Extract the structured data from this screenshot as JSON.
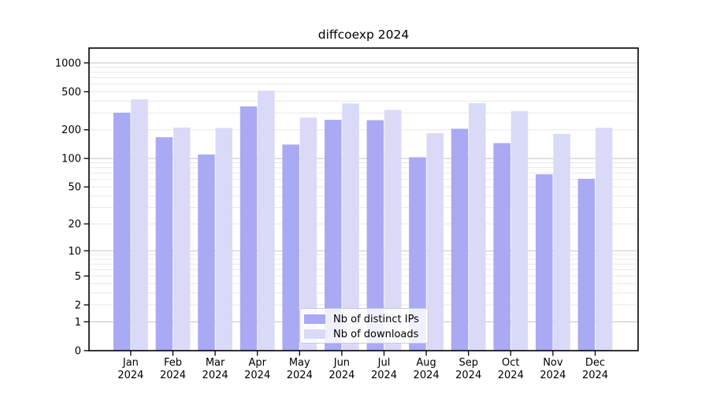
{
  "title": "diffcoexp 2024",
  "chart_data": {
    "type": "bar",
    "title": "diffcoexp 2024",
    "categories": [
      "Jan",
      "Feb",
      "Mar",
      "Apr",
      "May",
      "Jun",
      "Jul",
      "Aug",
      "Sep",
      "Oct",
      "Nov",
      "Dec"
    ],
    "year_label": "2024",
    "series": [
      {
        "name": "Nb of distinct IPs",
        "color": "#a9a9f4",
        "values": [
          302,
          167,
          110,
          351,
          140,
          254,
          252,
          103,
          205,
          145,
          68,
          61
        ]
      },
      {
        "name": "Nb of downloads",
        "color": "#dadaf8",
        "values": [
          417,
          211,
          209,
          514,
          268,
          377,
          322,
          184,
          380,
          313,
          181,
          210
        ]
      }
    ],
    "xlabel": "",
    "ylabel": "",
    "y_scale": "log1p",
    "y_ticks": [
      0,
      1,
      2,
      5,
      10,
      20,
      50,
      100,
      200,
      500,
      1000
    ],
    "y_major_gridlines": [
      1,
      10,
      100,
      1000
    ],
    "y_minor_gridlines": [
      2,
      3,
      4,
      5,
      6,
      7,
      8,
      9,
      20,
      30,
      40,
      50,
      60,
      70,
      80,
      90,
      200,
      300,
      400,
      500,
      600,
      700,
      800,
      900
    ],
    "ylim": [
      0,
      1430
    ],
    "grid": "on",
    "legend_position": "lower center"
  },
  "colors": {
    "bar_distinct_ips": "#a9a9f4",
    "bar_downloads": "#dadaf8",
    "major_gridline": "#c3c3c3",
    "minor_gridline": "#e8e8e8",
    "axis_frame": "#000000",
    "text": "#000000",
    "legend_border": "#cccccc"
  }
}
